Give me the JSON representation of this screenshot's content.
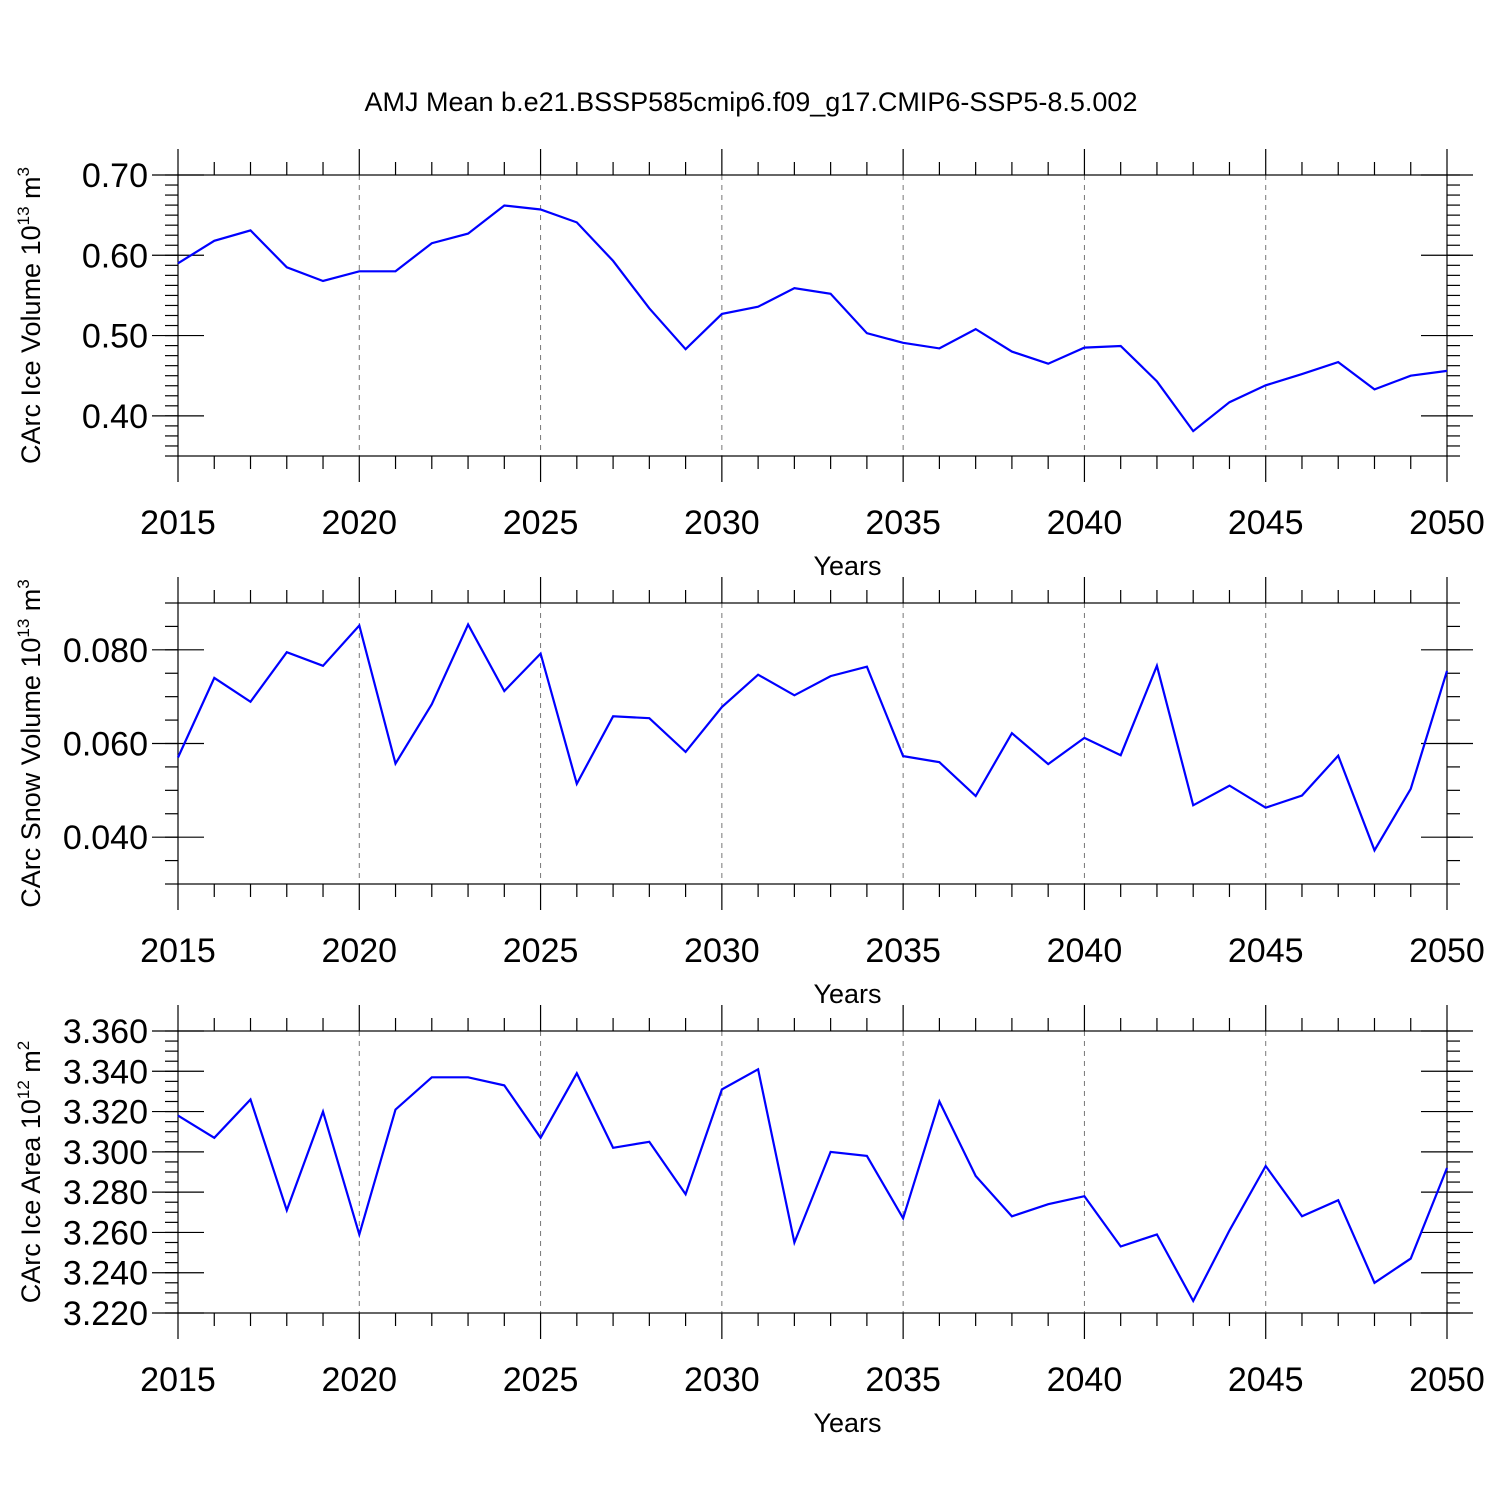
{
  "title": "AMJ Mean b.e21.BSSP585cmip6.f09_g17.CMIP6-SSP5-8.5.002",
  "chart_data": [
    {
      "type": "line",
      "ylabel_main": "CArc Ice Volume 10",
      "ylabel_exp": "13",
      "ylabel_unit": " m",
      "ylabel_unit_exp": "3",
      "xlabel": "Years",
      "xlim": [
        2015,
        2050
      ],
      "ylim": [
        0.35,
        0.7
      ],
      "xticks": [
        2015,
        2020,
        2025,
        2030,
        2035,
        2040,
        2045,
        2050
      ],
      "xtick_labels": [
        "2015",
        "2020",
        "2025",
        "2030",
        "2035",
        "2040",
        "2045",
        "2050"
      ],
      "yticks": [
        0.4,
        0.5,
        0.6,
        0.7
      ],
      "ytick_labels": [
        "0.40",
        "0.50",
        "0.60",
        "0.70"
      ],
      "grid": "vertical dashed",
      "color": "#0000ff",
      "x": [
        2015,
        2016,
        2017,
        2018,
        2019,
        2020,
        2021,
        2022,
        2023,
        2024,
        2025,
        2026,
        2027,
        2028,
        2029,
        2030,
        2031,
        2032,
        2033,
        2034,
        2035,
        2036,
        2037,
        2038,
        2039,
        2040,
        2041,
        2042,
        2043,
        2044,
        2045,
        2046,
        2047,
        2048,
        2049,
        2050
      ],
      "values": [
        0.59,
        0.618,
        0.631,
        0.585,
        0.568,
        0.58,
        0.58,
        0.615,
        0.627,
        0.662,
        0.657,
        0.641,
        0.593,
        0.534,
        0.483,
        0.527,
        0.536,
        0.559,
        0.552,
        0.503,
        0.491,
        0.484,
        0.508,
        0.48,
        0.465,
        0.485,
        0.487,
        0.443,
        0.381,
        0.417,
        0.438,
        0.452,
        0.467,
        0.433,
        0.45,
        0.456
      ]
    },
    {
      "type": "line",
      "ylabel_main": "CArc Snow Volume 10",
      "ylabel_exp": "13",
      "ylabel_unit": " m",
      "ylabel_unit_exp": "3",
      "xlabel": "Years",
      "xlim": [
        2015,
        2050
      ],
      "ylim": [
        0.03,
        0.09
      ],
      "xticks": [
        2015,
        2020,
        2025,
        2030,
        2035,
        2040,
        2045,
        2050
      ],
      "xtick_labels": [
        "2015",
        "2020",
        "2025",
        "2030",
        "2035",
        "2040",
        "2045",
        "2050"
      ],
      "yticks": [
        0.04,
        0.06,
        0.08
      ],
      "ytick_labels": [
        "0.040",
        "0.060",
        "0.080"
      ],
      "grid": "vertical dashed",
      "color": "#0000ff",
      "x": [
        2015,
        2016,
        2017,
        2018,
        2019,
        2020,
        2021,
        2022,
        2023,
        2024,
        2025,
        2026,
        2027,
        2028,
        2029,
        2030,
        2031,
        2032,
        2033,
        2034,
        2035,
        2036,
        2037,
        2038,
        2039,
        2040,
        2041,
        2042,
        2043,
        2044,
        2045,
        2046,
        2047,
        2048,
        2049,
        2050
      ],
      "values": [
        0.057,
        0.074,
        0.0689,
        0.0795,
        0.0766,
        0.0852,
        0.0557,
        0.0684,
        0.0854,
        0.0712,
        0.0792,
        0.0514,
        0.0658,
        0.0654,
        0.0582,
        0.0678,
        0.0747,
        0.0703,
        0.0744,
        0.0764,
        0.0573,
        0.056,
        0.0488,
        0.0622,
        0.0556,
        0.0612,
        0.0575,
        0.0766,
        0.0468,
        0.051,
        0.0463,
        0.0489,
        0.0574,
        0.0372,
        0.0503,
        0.0755
      ]
    },
    {
      "type": "line",
      "ylabel_main": "CArc Ice Area 10",
      "ylabel_exp": "12",
      "ylabel_unit": " m",
      "ylabel_unit_exp": "2",
      "xlabel": "Years",
      "xlim": [
        2015,
        2050
      ],
      "ylim": [
        3.22,
        3.36
      ],
      "xticks": [
        2015,
        2020,
        2025,
        2030,
        2035,
        2040,
        2045,
        2050
      ],
      "xtick_labels": [
        "2015",
        "2020",
        "2025",
        "2030",
        "2035",
        "2040",
        "2045",
        "2050"
      ],
      "yticks": [
        3.22,
        3.24,
        3.26,
        3.28,
        3.3,
        3.32,
        3.34,
        3.36
      ],
      "ytick_labels": [
        "3.220",
        "3.240",
        "3.260",
        "3.280",
        "3.300",
        "3.320",
        "3.340",
        "3.360"
      ],
      "grid": "vertical dashed",
      "color": "#0000ff",
      "x": [
        2015,
        2016,
        2017,
        2018,
        2019,
        2020,
        2021,
        2022,
        2023,
        2024,
        2025,
        2026,
        2027,
        2028,
        2029,
        2030,
        2031,
        2032,
        2033,
        2034,
        2035,
        2036,
        2037,
        2038,
        2039,
        2040,
        2041,
        2042,
        2043,
        2044,
        2045,
        2046,
        2047,
        2048,
        2049,
        2050
      ],
      "values": [
        3.318,
        3.307,
        3.326,
        3.271,
        3.32,
        3.259,
        3.321,
        3.337,
        3.337,
        3.333,
        3.307,
        3.339,
        3.302,
        3.305,
        3.279,
        3.331,
        3.341,
        3.255,
        3.3,
        3.298,
        3.267,
        3.325,
        3.288,
        3.268,
        3.274,
        3.278,
        3.253,
        3.259,
        3.226,
        3.261,
        3.293,
        3.268,
        3.276,
        3.235,
        3.247,
        3.292
      ]
    }
  ]
}
